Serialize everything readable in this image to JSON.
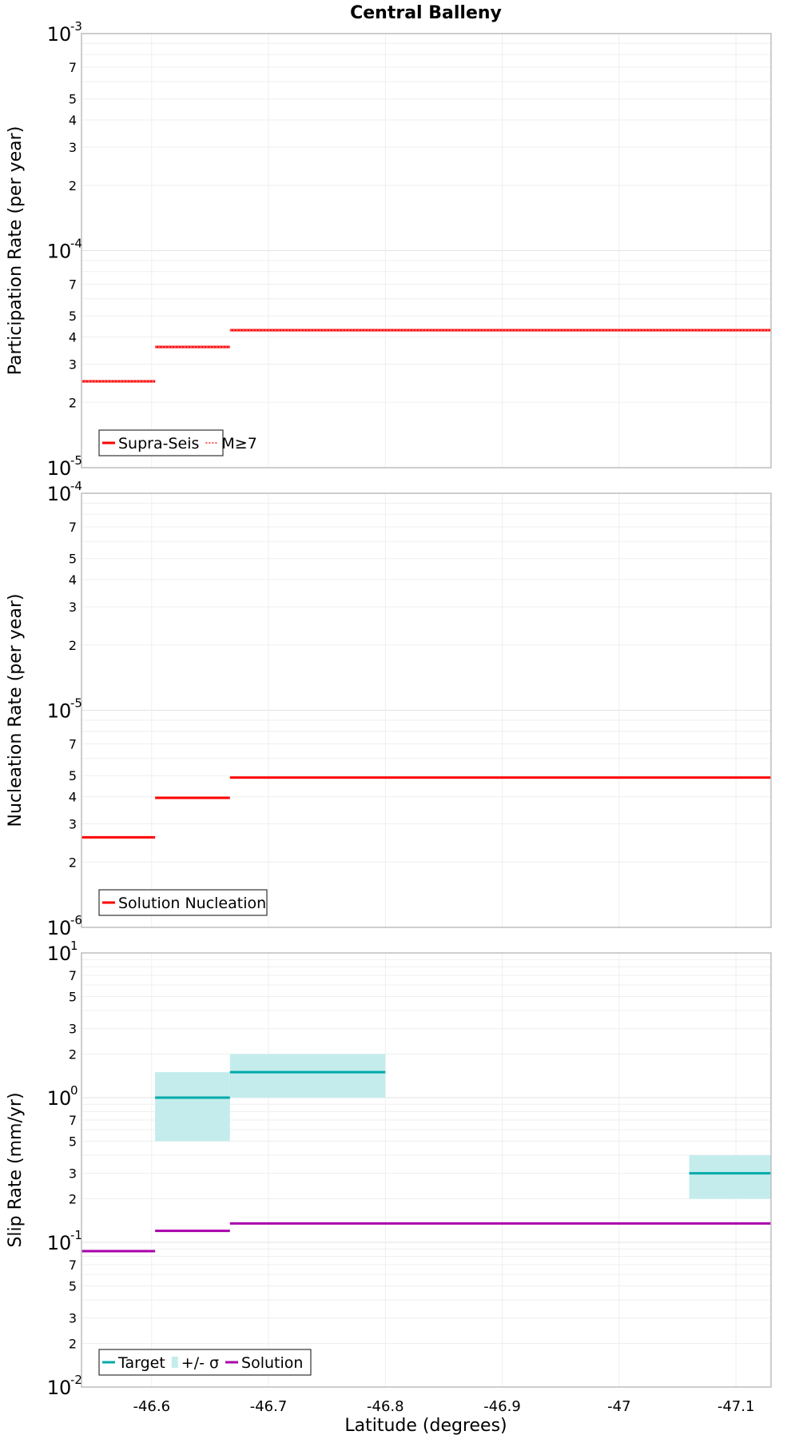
{
  "chart_data": {
    "title": "Central Balleny",
    "x_axis": {
      "label": "Latitude (degrees)",
      "range": [
        -46.54,
        -47.13
      ],
      "ticks": [
        -46.6,
        -46.7,
        -46.8,
        -46.9,
        -47.0,
        -47.1
      ],
      "tick_labels": [
        "-46.6",
        "-46.7",
        "-46.8",
        "-46.9",
        "-47",
        "-47.1"
      ]
    },
    "panels": [
      {
        "type": "line",
        "ylabel": "Participation Rate (per year)",
        "yscale": "log",
        "ylim": [
          1e-05,
          0.001
        ],
        "decade_labels": [
          {
            "base": "10",
            "exp": "-5"
          },
          {
            "base": "10",
            "exp": "-4"
          },
          {
            "base": "10",
            "exp": "-3"
          }
        ],
        "legend_position": "bottom-left",
        "series": [
          {
            "name": "Supra-Seis",
            "style": "solid",
            "color": "#ff0000",
            "segments": [
              {
                "x": [
                  -46.54,
                  -46.603
                ],
                "y": 2.5e-05
              },
              {
                "x": [
                  -46.603,
                  -46.667
                ],
                "y": 3.6e-05
              },
              {
                "x": [
                  -46.667,
                  -47.13
                ],
                "y": 4.3e-05
              }
            ]
          },
          {
            "name": "M≥7",
            "style": "dotted",
            "color": "#ff0000",
            "segments": [
              {
                "x": [
                  -46.54,
                  -46.603
                ],
                "y": 2.5e-05
              },
              {
                "x": [
                  -46.603,
                  -46.667
                ],
                "y": 3.6e-05
              },
              {
                "x": [
                  -46.667,
                  -47.13
                ],
                "y": 4.3e-05
              }
            ]
          }
        ]
      },
      {
        "type": "line",
        "ylabel": "Nucleation Rate (per year)",
        "yscale": "log",
        "ylim": [
          1e-06,
          0.0001
        ],
        "decade_labels": [
          {
            "base": "10",
            "exp": "-6"
          },
          {
            "base": "10",
            "exp": "-5"
          },
          {
            "base": "10",
            "exp": "-4"
          }
        ],
        "legend_position": "bottom-left",
        "series": [
          {
            "name": "Solution Nucleation",
            "style": "solid",
            "color": "#ff0000",
            "segments": [
              {
                "x": [
                  -46.54,
                  -46.603
                ],
                "y": 2.6e-06
              },
              {
                "x": [
                  -46.603,
                  -46.667
                ],
                "y": 3.95e-06
              },
              {
                "x": [
                  -46.667,
                  -47.13
                ],
                "y": 4.9e-06
              }
            ]
          }
        ]
      },
      {
        "type": "line",
        "ylabel": "Slip Rate (mm/yr)",
        "yscale": "log",
        "ylim": [
          0.01,
          10
        ],
        "decade_labels": [
          {
            "base": "10",
            "exp": "-2"
          },
          {
            "base": "10",
            "exp": "-1"
          },
          {
            "base": "10",
            "exp": "0"
          },
          {
            "base": "10",
            "exp": "1"
          }
        ],
        "legend_position": "bottom-left",
        "series": [
          {
            "name": "Target",
            "style": "solid",
            "color": "#00aaaa",
            "segments": [
              {
                "x": [
                  -46.603,
                  -46.667
                ],
                "y": 1.0
              },
              {
                "x": [
                  -46.667,
                  -46.8
                ],
                "y": 1.5
              },
              {
                "x": [
                  -47.06,
                  -47.13
                ],
                "y": 0.3
              }
            ]
          },
          {
            "name": "+/- σ",
            "style": "band",
            "color": "#c4ecec",
            "bands": [
              {
                "x": [
                  -46.603,
                  -46.667
                ],
                "y_low": 0.5,
                "y_high": 1.5
              },
              {
                "x": [
                  -46.667,
                  -46.8
                ],
                "y_low": 1.0,
                "y_high": 2.0
              },
              {
                "x": [
                  -47.06,
                  -47.13
                ],
                "y_low": 0.2,
                "y_high": 0.4
              }
            ]
          },
          {
            "name": "Solution",
            "style": "solid",
            "color": "#aa00aa",
            "segments": [
              {
                "x": [
                  -46.54,
                  -46.603
                ],
                "y": 0.087
              },
              {
                "x": [
                  -46.603,
                  -46.667
                ],
                "y": 0.12
              },
              {
                "x": [
                  -46.667,
                  -47.13
                ],
                "y": 0.135
              }
            ]
          }
        ]
      }
    ]
  }
}
